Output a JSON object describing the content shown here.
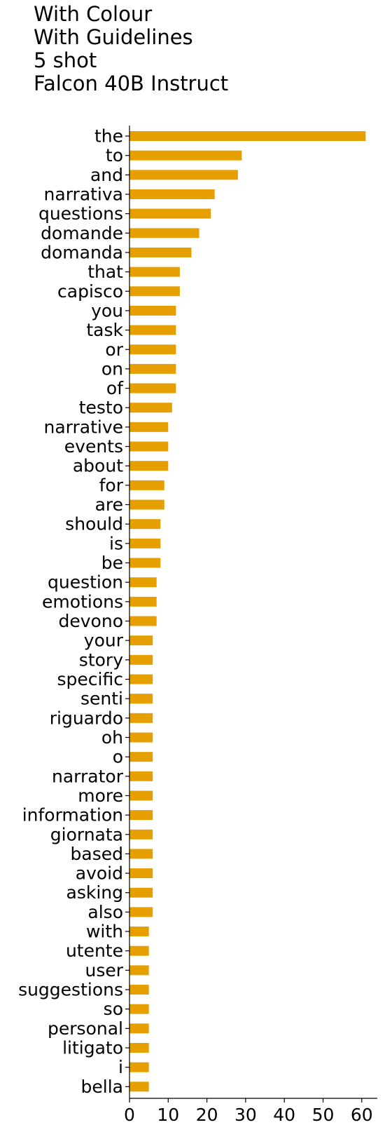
{
  "chart_data": {
    "type": "bar",
    "orientation": "horizontal",
    "title": [
      "With Colour",
      "With Guidelines",
      "5 shot",
      "Falcon 40B Instruct"
    ],
    "bar_color": "#E69F00",
    "xlim": [
      0,
      64
    ],
    "xticks": [
      0,
      10,
      20,
      30,
      40,
      50,
      60
    ],
    "grid": false,
    "categories": [
      "the",
      "to",
      "and",
      "narrativa",
      "questions",
      "domande",
      "domanda",
      "that",
      "capisco",
      "you",
      "task",
      "or",
      "on",
      "of",
      "testo",
      "narrative",
      "events",
      "about",
      "for",
      "are",
      "should",
      "is",
      "be",
      "question",
      "emotions",
      "devono",
      "your",
      "story",
      "specific",
      "senti",
      "riguardo",
      "oh",
      "o",
      "narrator",
      "more",
      "information",
      "giornata",
      "based",
      "avoid",
      "asking",
      "also",
      "with",
      "utente",
      "user",
      "suggestions",
      "so",
      "personal",
      "litigato",
      "i",
      "bella"
    ],
    "values": [
      61,
      29,
      28,
      22,
      21,
      18,
      16,
      13,
      13,
      12,
      12,
      12,
      12,
      12,
      11,
      10,
      10,
      10,
      9,
      9,
      8,
      8,
      8,
      7,
      7,
      7,
      6,
      6,
      6,
      6,
      6,
      6,
      6,
      6,
      6,
      6,
      6,
      6,
      6,
      6,
      6,
      5,
      5,
      5,
      5,
      5,
      5,
      5,
      5,
      5
    ]
  }
}
